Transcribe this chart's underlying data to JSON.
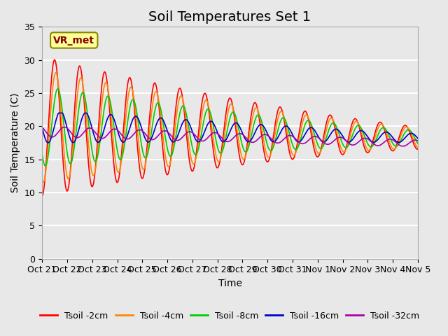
{
  "title": "Soil Temperatures Set 1",
  "xlabel": "Time",
  "ylabel": "Soil Temperature (C)",
  "ylim": [
    0,
    35
  ],
  "yticks": [
    0,
    5,
    10,
    15,
    20,
    25,
    30,
    35
  ],
  "x_labels": [
    "Oct 21",
    "Oct 22",
    "Oct 23",
    "Oct 24",
    "Oct 25",
    "Oct 26",
    "Oct 27",
    "Oct 28",
    "Oct 29",
    "Oct 30",
    "Oct 31",
    "Nov 1",
    "Nov 2",
    "Nov 3",
    "Nov 4",
    "Nov 5"
  ],
  "colors": {
    "Tsoil -2cm": "#ff0000",
    "Tsoil -4cm": "#ff8800",
    "Tsoil -8cm": "#00cc00",
    "Tsoil -16cm": "#0000cc",
    "Tsoil -32cm": "#aa00aa"
  },
  "annotation_text": "VR_met",
  "annotation_color": "#880000",
  "annotation_bg": "#ffff99",
  "title_fontsize": 14,
  "axis_label_fontsize": 10,
  "tick_fontsize": 9
}
